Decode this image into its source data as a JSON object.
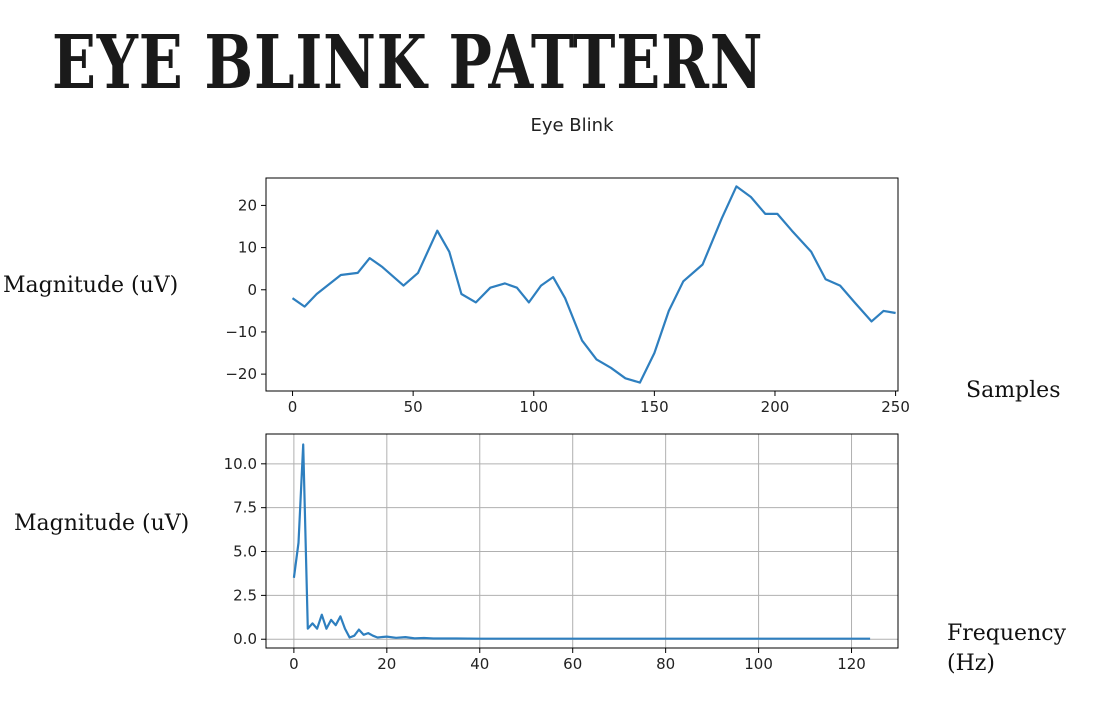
{
  "slide": {
    "title": "EYE BLINK PATTERN",
    "top_ylabel": "Magnitude (uV)",
    "top_xlabel": "Samples",
    "bottom_ylabel": "Magnitude (uV)",
    "bottom_xlabel": "Frequency (Hz)"
  },
  "chart_data": [
    {
      "type": "line",
      "title": "Eye Blink",
      "xlabel": "Samples",
      "ylabel": "Magnitude (uV)",
      "xlim": [
        -11,
        251
      ],
      "ylim": [
        -24,
        26.5
      ],
      "xticks": [
        0,
        50,
        100,
        150,
        200,
        250
      ],
      "yticks": [
        -20,
        -10,
        0,
        10,
        20
      ],
      "grid": false,
      "color": "#2e7fbf",
      "x": [
        0,
        5,
        10,
        20,
        27,
        32,
        37,
        46,
        52,
        60,
        65,
        70,
        76,
        82,
        88,
        93,
        98,
        103,
        108,
        113,
        120,
        126,
        132,
        138,
        144,
        150,
        156,
        162,
        170,
        178,
        184,
        190,
        196,
        201,
        207,
        215,
        221,
        227,
        233,
        240,
        245,
        250
      ],
      "y": [
        -2,
        -4,
        -1,
        3.5,
        4,
        7.5,
        5.5,
        1,
        4,
        14,
        9,
        -1,
        -3,
        0.5,
        1.5,
        0.5,
        -3,
        1,
        3,
        -2,
        -12,
        -16.5,
        -18.5,
        -21,
        -22,
        -15,
        -5,
        2,
        6,
        17,
        24.5,
        22,
        18,
        18,
        14,
        9,
        2.5,
        1,
        -3,
        -7.5,
        -5,
        -5.5
      ]
    },
    {
      "type": "line",
      "xlabel": "Frequency (Hz)",
      "ylabel": "Magnitude (uV)",
      "xlim": [
        -6,
        130
      ],
      "ylim": [
        -0.5,
        11.7
      ],
      "xticks": [
        0,
        20,
        40,
        60,
        80,
        100,
        120
      ],
      "yticks": [
        0.0,
        2.5,
        5.0,
        7.5,
        10.0
      ],
      "ytick_labels": [
        "0.0",
        "2.5",
        "5.0",
        "7.5",
        "10.0"
      ],
      "grid": true,
      "color": "#2e7fbf",
      "x": [
        0,
        1,
        2,
        3,
        4,
        5,
        6,
        7,
        8,
        9,
        10,
        11,
        12,
        13,
        14,
        15,
        16,
        17,
        18,
        20,
        22,
        24,
        26,
        28,
        30,
        35,
        40,
        50,
        60,
        70,
        80,
        90,
        100,
        110,
        124
      ],
      "y": [
        3.5,
        5.5,
        11.1,
        0.6,
        0.9,
        0.6,
        1.4,
        0.6,
        1.1,
        0.8,
        1.3,
        0.6,
        0.1,
        0.2,
        0.55,
        0.25,
        0.35,
        0.2,
        0.1,
        0.15,
        0.08,
        0.12,
        0.05,
        0.07,
        0.04,
        0.04,
        0.03,
        0.03,
        0.03,
        0.03,
        0.03,
        0.03,
        0.03,
        0.03,
        0.03
      ]
    }
  ]
}
